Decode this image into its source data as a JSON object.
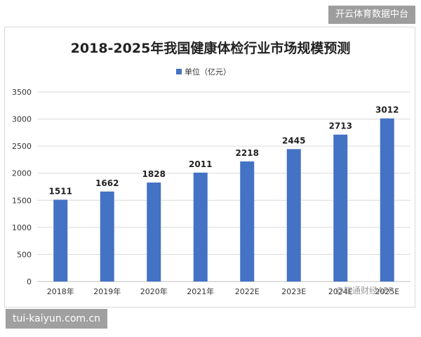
{
  "watermark_top": "开云体育数据中台",
  "watermark_bottom": "tui-kaiyun.com.cn",
  "watermark_corner": "@智通财经APP",
  "chart_data": {
    "type": "bar",
    "title": "2018-2025年我国健康体检行业市场规模预测",
    "legend": {
      "label": "单位（亿元）",
      "position": "top-center"
    },
    "categories": [
      "2018年",
      "2019年",
      "2020年",
      "2021年",
      "2022E",
      "2023E",
      "2024E",
      "2025E"
    ],
    "series": [
      {
        "name": "单位（亿元）",
        "values": [
          1511,
          1662,
          1828,
          2011,
          2218,
          2445,
          2713,
          3012
        ]
      }
    ],
    "ylim": [
      0,
      3500
    ],
    "yticks": [
      0,
      500,
      1000,
      1500,
      2000,
      2500,
      3000,
      3500
    ],
    "grid": true,
    "bar_color": "#4472C4"
  }
}
